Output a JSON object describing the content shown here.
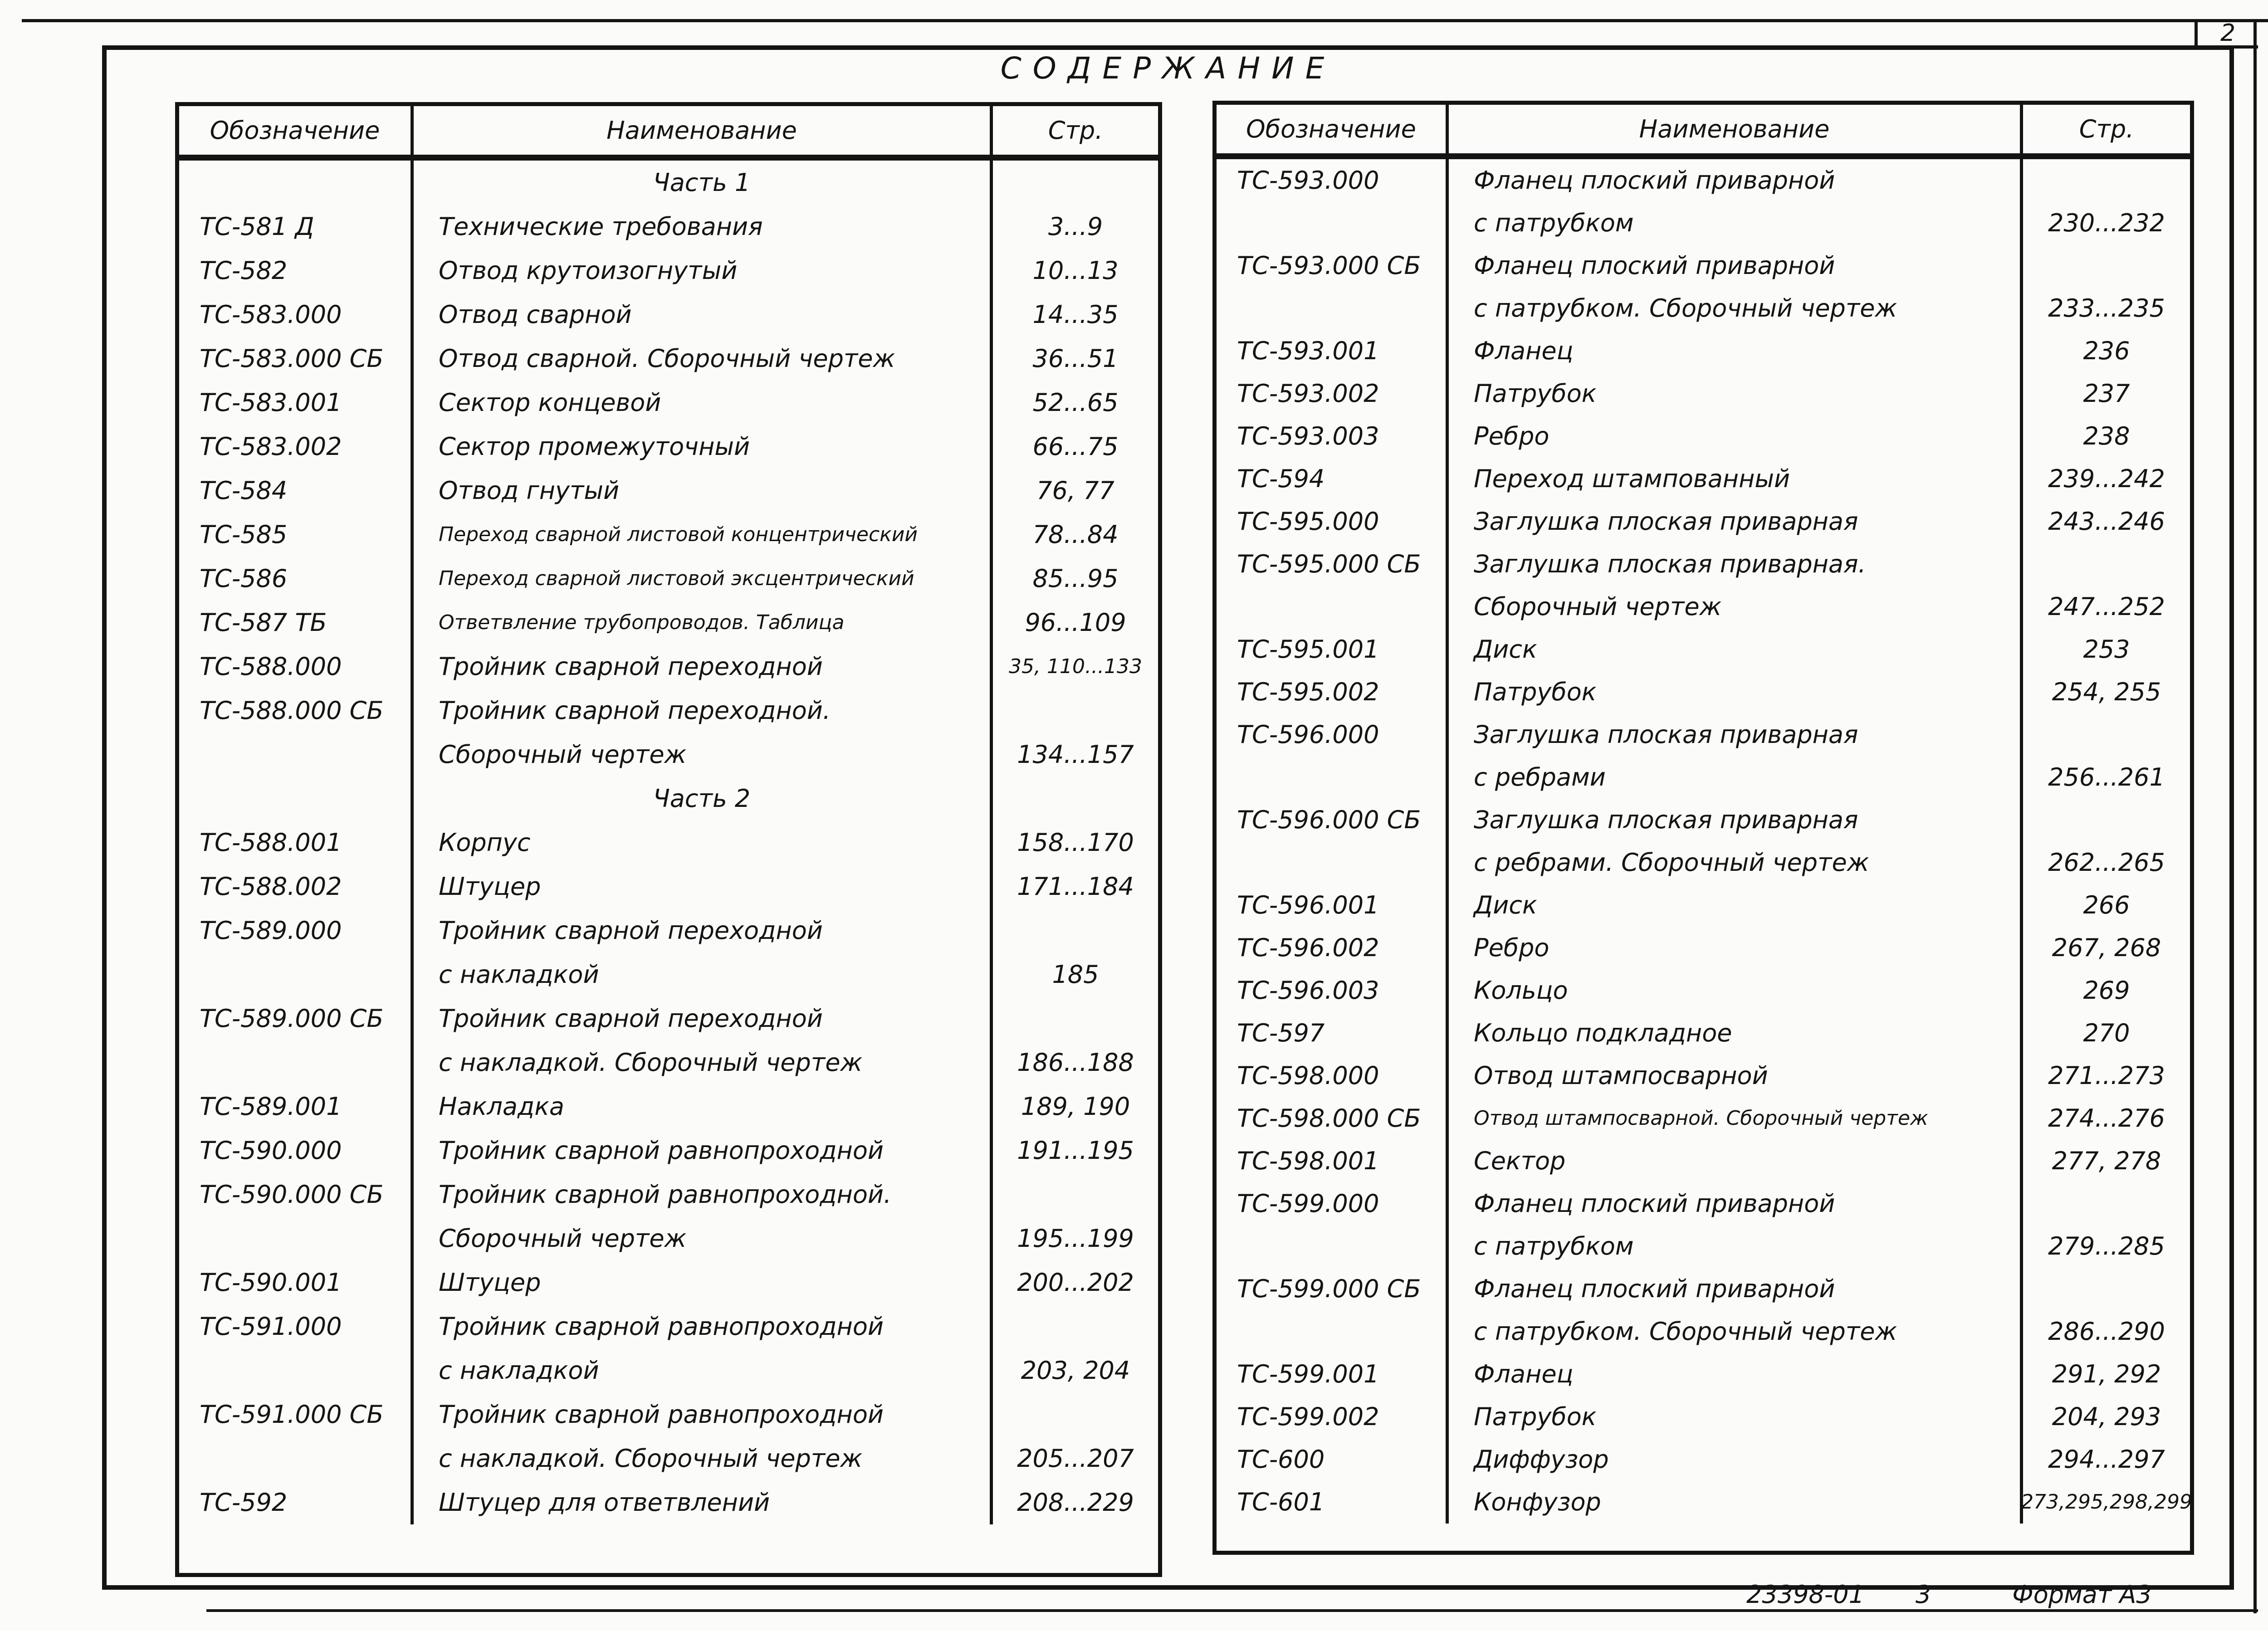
{
  "sheet": {
    "page_number": "2",
    "title": "СОДЕРЖАНИЕ",
    "ink_color": "#141414",
    "paper_color": "#fbfbf9",
    "footer": {
      "doc_code": "23398-01",
      "sheet_number": "3",
      "format": "Формат А3"
    }
  },
  "tables": [
    {
      "side": "left",
      "headers": {
        "designation": "Обозначение",
        "name": "Наименование",
        "page": "Стр."
      },
      "rows": [
        {
          "section": "Часть 1"
        },
        {
          "code": "ТС-581 Д",
          "name_lines": [
            "Технические требования"
          ],
          "pages": "3...9"
        },
        {
          "code": "ТС-582",
          "name_lines": [
            "Отвод крутоизогнутый"
          ],
          "pages": "10...13"
        },
        {
          "code": "ТС-583.000",
          "name_lines": [
            "Отвод сварной"
          ],
          "pages": "14...35"
        },
        {
          "code": "ТС-583.000 СБ",
          "name_lines": [
            "Отвод сварной. Сборочный чертеж"
          ],
          "pages": "36...51"
        },
        {
          "code": "ТС-583.001",
          "name_lines": [
            "Сектор концевой"
          ],
          "pages": "52...65"
        },
        {
          "code": "ТС-583.002",
          "name_lines": [
            "Сектор промежуточный"
          ],
          "pages": "66...75"
        },
        {
          "code": "ТС-584",
          "name_lines": [
            "Отвод гнутый"
          ],
          "pages": "76, 77"
        },
        {
          "code": "ТС-585",
          "name_lines": [
            "Переход сварной листовой концентрический"
          ],
          "pages": "78...84"
        },
        {
          "code": "ТС-586",
          "name_lines": [
            "Переход сварной листовой эксцентрический"
          ],
          "pages": "85...95"
        },
        {
          "code": "ТС-587 ТБ",
          "name_lines": [
            "Ответвление трубопроводов. Таблица"
          ],
          "pages": "96...109"
        },
        {
          "code": "ТС-588.000",
          "name_lines": [
            "Тройник сварной переходной"
          ],
          "pages": "35, 110...133"
        },
        {
          "code": "ТС-588.000 СБ",
          "name_lines": [
            "Тройник сварной переходной.",
            "Сборочный чертеж"
          ],
          "pages": "134...157"
        },
        {
          "section": "Часть 2"
        },
        {
          "code": "ТС-588.001",
          "name_lines": [
            "Корпус"
          ],
          "pages": "158...170"
        },
        {
          "code": "ТС-588.002",
          "name_lines": [
            "Штуцер"
          ],
          "pages": "171...184"
        },
        {
          "code": "ТС-589.000",
          "name_lines": [
            "Тройник сварной переходной",
            "с накладкой"
          ],
          "pages": "185"
        },
        {
          "code": "ТС-589.000 СБ",
          "name_lines": [
            "Тройник сварной переходной",
            "с накладкой. Сборочный чертеж"
          ],
          "pages": "186...188"
        },
        {
          "code": "ТС-589.001",
          "name_lines": [
            "Накладка"
          ],
          "pages": "189, 190"
        },
        {
          "code": "ТС-590.000",
          "name_lines": [
            "Тройник сварной равнопроходной"
          ],
          "pages": "191...195"
        },
        {
          "code": "ТС-590.000 СБ",
          "name_lines": [
            "Тройник сварной равнопроходной.",
            "Сборочный чертеж"
          ],
          "pages": "195...199"
        },
        {
          "code": "ТС-590.001",
          "name_lines": [
            "Штуцер"
          ],
          "pages": "200...202"
        },
        {
          "code": "ТС-591.000",
          "name_lines": [
            "Тройник сварной равнопроходной",
            "с накладкой"
          ],
          "pages": "203, 204"
        },
        {
          "code": "ТС-591.000 СБ",
          "name_lines": [
            "Тройник сварной равнопроходной",
            "с накладкой. Сборочный чертеж"
          ],
          "pages": "205...207"
        },
        {
          "code": "ТС-592",
          "name_lines": [
            "Штуцер для ответвлений"
          ],
          "pages": "208...229"
        }
      ]
    },
    {
      "side": "right",
      "headers": {
        "designation": "Обозначение",
        "name": "Наименование",
        "page": "Стр."
      },
      "rows": [
        {
          "code": "ТС-593.000",
          "name_lines": [
            "Фланец плоский приварной",
            "с патрубком"
          ],
          "pages": "230...232"
        },
        {
          "code": "ТС-593.000 СБ",
          "name_lines": [
            "Фланец плоский приварной",
            "с патрубком. Сборочный чертеж"
          ],
          "pages": "233...235"
        },
        {
          "code": "ТС-593.001",
          "name_lines": [
            "Фланец"
          ],
          "pages": "236"
        },
        {
          "code": "ТС-593.002",
          "name_lines": [
            "Патрубок"
          ],
          "pages": "237"
        },
        {
          "code": "ТС-593.003",
          "name_lines": [
            "Ребро"
          ],
          "pages": "238"
        },
        {
          "code": "ТС-594",
          "name_lines": [
            "Переход штампованный"
          ],
          "pages": "239...242"
        },
        {
          "code": "ТС-595.000",
          "name_lines": [
            "Заглушка плоская приварная"
          ],
          "pages": "243...246"
        },
        {
          "code": "ТС-595.000 СБ",
          "name_lines": [
            "Заглушка плоская приварная.",
            "Сборочный чертеж"
          ],
          "pages": "247...252"
        },
        {
          "code": "ТС-595.001",
          "name_lines": [
            "Диск"
          ],
          "pages": "253"
        },
        {
          "code": "ТС-595.002",
          "name_lines": [
            "Патрубок"
          ],
          "pages": "254, 255"
        },
        {
          "code": "ТС-596.000",
          "name_lines": [
            "Заглушка плоская приварная",
            "с ребрами"
          ],
          "pages": "256...261"
        },
        {
          "code": "ТС-596.000 СБ",
          "name_lines": [
            "Заглушка плоская приварная",
            "с ребрами. Сборочный чертеж"
          ],
          "pages": "262...265"
        },
        {
          "code": "ТС-596.001",
          "name_lines": [
            "Диск"
          ],
          "pages": "266"
        },
        {
          "code": "ТС-596.002",
          "name_lines": [
            "Ребро"
          ],
          "pages": "267, 268"
        },
        {
          "code": "ТС-596.003",
          "name_lines": [
            "Кольцо"
          ],
          "pages": "269"
        },
        {
          "code": "ТС-597",
          "name_lines": [
            "Кольцо подкладное"
          ],
          "pages": "270"
        },
        {
          "code": "ТС-598.000",
          "name_lines": [
            "Отвод штампосварной"
          ],
          "pages": "271...273"
        },
        {
          "code": "ТС-598.000 СБ",
          "name_lines": [
            "Отвод штампосварной. Сборочный чертеж"
          ],
          "pages": "274...276"
        },
        {
          "code": "ТС-598.001",
          "name_lines": [
            "Сектор"
          ],
          "pages": "277, 278"
        },
        {
          "code": "ТС-599.000",
          "name_lines": [
            "Фланец плоский приварной",
            "с патрубком"
          ],
          "pages": "279...285"
        },
        {
          "code": "ТС-599.000 СБ",
          "name_lines": [
            "Фланец плоский приварной",
            "с патрубком. Сборочный чертеж"
          ],
          "pages": "286...290"
        },
        {
          "code": "ТС-599.001",
          "name_lines": [
            "Фланец"
          ],
          "pages": "291, 292"
        },
        {
          "code": "ТС-599.002",
          "name_lines": [
            "Патрубок"
          ],
          "pages": "204, 293"
        },
        {
          "code": "ТС-600",
          "name_lines": [
            "Диффузор"
          ],
          "pages": "294...297"
        },
        {
          "code": "ТС-601",
          "name_lines": [
            "Конфузор"
          ],
          "pages": "273,295,298,299"
        }
      ]
    }
  ]
}
